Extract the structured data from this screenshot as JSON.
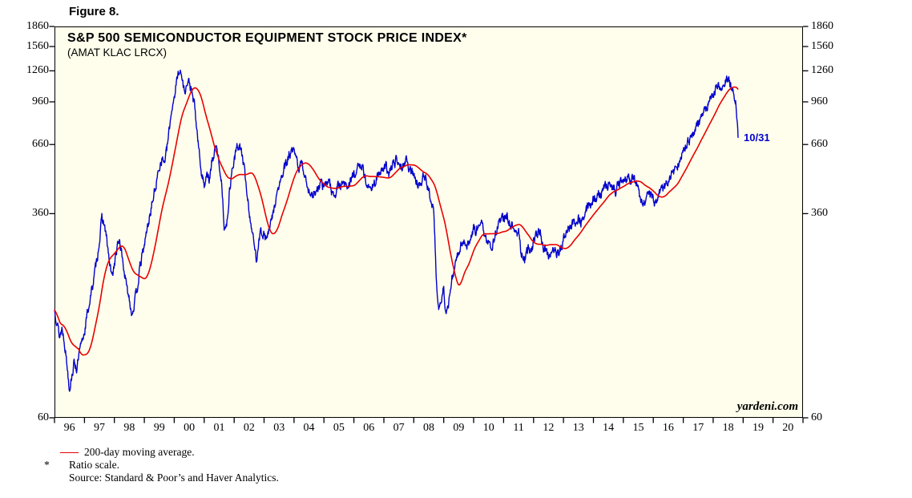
{
  "figure": {
    "label": "Figure 8."
  },
  "chart_data": {
    "type": "line",
    "title": "S&P 500 SEMICONDUCTOR EQUIPMENT STOCK PRICE INDEX*",
    "subtitle": "(AMAT KLAC LRCX)",
    "y_scale": "log",
    "ylim": [
      60,
      1860
    ],
    "y_ticks": [
      1860,
      1560,
      1260,
      960,
      660,
      360,
      60
    ],
    "x_range": [
      1996,
      2021
    ],
    "x_year_labels": [
      "96",
      "97",
      "98",
      "99",
      "00",
      "01",
      "02",
      "03",
      "04",
      "05",
      "06",
      "07",
      "08",
      "09",
      "10",
      "11",
      "12",
      "13",
      "14",
      "15",
      "16",
      "17",
      "18",
      "19",
      "20"
    ],
    "grid": "off",
    "legend_position": "below-left",
    "plot_background": "#fffeec",
    "watermark": "yardeni.com",
    "annotations": [
      {
        "text": "10/31",
        "x": 2019.02,
        "y": 700,
        "color": "#0000cd"
      }
    ],
    "legend": [
      {
        "label": "200-day moving average.",
        "color": "#e80000"
      }
    ],
    "style": {
      "noise_amplitude": 0.035
    },
    "series": [
      {
        "name": "S&P 500 Semiconductor Equipment stock price index (daily)",
        "color": "#0000cd",
        "points": [
          [
            1996.0,
            155
          ],
          [
            1996.083,
            142
          ],
          [
            1996.167,
            122
          ],
          [
            1996.25,
            132
          ],
          [
            1996.333,
            118
          ],
          [
            1996.417,
            96
          ],
          [
            1996.5,
            78
          ],
          [
            1996.583,
            88
          ],
          [
            1996.667,
            98
          ],
          [
            1996.75,
            92
          ],
          [
            1996.833,
            106
          ],
          [
            1996.917,
            116
          ],
          [
            1997.0,
            128
          ],
          [
            1997.083,
            146
          ],
          [
            1997.167,
            165
          ],
          [
            1997.25,
            185
          ],
          [
            1997.333,
            210
          ],
          [
            1997.417,
            240
          ],
          [
            1997.5,
            285
          ],
          [
            1997.583,
            345
          ],
          [
            1997.667,
            325
          ],
          [
            1997.75,
            282
          ],
          [
            1997.833,
            235
          ],
          [
            1997.917,
            205
          ],
          [
            1998.0,
            232
          ],
          [
            1998.083,
            262
          ],
          [
            1998.167,
            288
          ],
          [
            1998.25,
            252
          ],
          [
            1998.333,
            215
          ],
          [
            1998.417,
            186
          ],
          [
            1998.5,
            172
          ],
          [
            1998.583,
            150
          ],
          [
            1998.667,
            163
          ],
          [
            1998.75,
            182
          ],
          [
            1998.833,
            215
          ],
          [
            1998.917,
            245
          ],
          [
            1999.0,
            272
          ],
          [
            1999.083,
            310
          ],
          [
            1999.167,
            345
          ],
          [
            1999.25,
            390
          ],
          [
            1999.333,
            430
          ],
          [
            1999.417,
            480
          ],
          [
            1999.5,
            545
          ],
          [
            1999.583,
            585
          ],
          [
            1999.667,
            565
          ],
          [
            1999.75,
            625
          ],
          [
            1999.833,
            750
          ],
          [
            1999.917,
            905
          ],
          [
            2000.0,
            1010
          ],
          [
            2000.083,
            1150
          ],
          [
            2000.167,
            1290
          ],
          [
            2000.25,
            1190
          ],
          [
            2000.333,
            1060
          ],
          [
            2000.417,
            1110
          ],
          [
            2000.5,
            1140
          ],
          [
            2000.583,
            1040
          ],
          [
            2000.667,
            940
          ],
          [
            2000.75,
            760
          ],
          [
            2000.833,
            610
          ],
          [
            2000.917,
            505
          ],
          [
            2001.0,
            465
          ],
          [
            2001.083,
            520
          ],
          [
            2001.167,
            475
          ],
          [
            2001.25,
            555
          ],
          [
            2001.333,
            615
          ],
          [
            2001.417,
            640
          ],
          [
            2001.5,
            560
          ],
          [
            2001.583,
            470
          ],
          [
            2001.667,
            330
          ],
          [
            2001.75,
            315
          ],
          [
            2001.833,
            425
          ],
          [
            2001.917,
            520
          ],
          [
            2002.0,
            575
          ],
          [
            2002.083,
            635
          ],
          [
            2002.167,
            660
          ],
          [
            2002.25,
            615
          ],
          [
            2002.333,
            535
          ],
          [
            2002.417,
            450
          ],
          [
            2002.5,
            365
          ],
          [
            2002.583,
            320
          ],
          [
            2002.667,
            272
          ],
          [
            2002.75,
            240
          ],
          [
            2002.833,
            298
          ],
          [
            2002.917,
            308
          ],
          [
            2003.0,
            298
          ],
          [
            2003.083,
            288
          ],
          [
            2003.167,
            308
          ],
          [
            2003.25,
            338
          ],
          [
            2003.333,
            378
          ],
          [
            2003.417,
            418
          ],
          [
            2003.5,
            458
          ],
          [
            2003.583,
            492
          ],
          [
            2003.667,
            528
          ],
          [
            2003.75,
            558
          ],
          [
            2003.833,
            598
          ],
          [
            2003.917,
            618
          ],
          [
            2004.0,
            612
          ],
          [
            2004.083,
            578
          ],
          [
            2004.167,
            538
          ],
          [
            2004.25,
            558
          ],
          [
            2004.333,
            518
          ],
          [
            2004.417,
            478
          ],
          [
            2004.5,
            442
          ],
          [
            2004.583,
            418
          ],
          [
            2004.667,
            438
          ],
          [
            2004.75,
            428
          ],
          [
            2004.833,
            458
          ],
          [
            2004.917,
            468
          ],
          [
            2005.0,
            452
          ],
          [
            2005.083,
            468
          ],
          [
            2005.167,
            488
          ],
          [
            2005.25,
            442
          ],
          [
            2005.333,
            422
          ],
          [
            2005.417,
            438
          ],
          [
            2005.5,
            468
          ],
          [
            2005.583,
            458
          ],
          [
            2005.667,
            478
          ],
          [
            2005.75,
            452
          ],
          [
            2005.833,
            468
          ],
          [
            2005.917,
            488
          ],
          [
            2006.0,
            508
          ],
          [
            2006.083,
            528
          ],
          [
            2006.167,
            538
          ],
          [
            2006.25,
            558
          ],
          [
            2006.333,
            518
          ],
          [
            2006.417,
            472
          ],
          [
            2006.5,
            442
          ],
          [
            2006.583,
            458
          ],
          [
            2006.667,
            468
          ],
          [
            2006.75,
            488
          ],
          [
            2006.833,
            508
          ],
          [
            2006.917,
            518
          ],
          [
            2007.0,
            528
          ],
          [
            2007.083,
            538
          ],
          [
            2007.167,
            508
          ],
          [
            2007.25,
            538
          ],
          [
            2007.333,
            558
          ],
          [
            2007.417,
            578
          ],
          [
            2007.5,
            588
          ],
          [
            2007.583,
            542
          ],
          [
            2007.667,
            558
          ],
          [
            2007.75,
            578
          ],
          [
            2007.833,
            542
          ],
          [
            2007.917,
            518
          ],
          [
            2008.0,
            498
          ],
          [
            2008.083,
            478
          ],
          [
            2008.167,
            458
          ],
          [
            2008.25,
            488
          ],
          [
            2008.333,
            508
          ],
          [
            2008.417,
            478
          ],
          [
            2008.5,
            432
          ],
          [
            2008.583,
            418
          ],
          [
            2008.667,
            352
          ],
          [
            2008.75,
            205
          ],
          [
            2008.833,
            152
          ],
          [
            2008.917,
            170
          ],
          [
            2009.0,
            185
          ],
          [
            2009.083,
            148
          ],
          [
            2009.167,
            160
          ],
          [
            2009.25,
            198
          ],
          [
            2009.333,
            218
          ],
          [
            2009.417,
            238
          ],
          [
            2009.5,
            258
          ],
          [
            2009.583,
            278
          ],
          [
            2009.667,
            288
          ],
          [
            2009.75,
            268
          ],
          [
            2009.833,
            278
          ],
          [
            2009.917,
            298
          ],
          [
            2010.0,
            318
          ],
          [
            2010.083,
            308
          ],
          [
            2010.167,
            328
          ],
          [
            2010.25,
            348
          ],
          [
            2010.333,
            298
          ],
          [
            2010.417,
            278
          ],
          [
            2010.5,
            288
          ],
          [
            2010.583,
            268
          ],
          [
            2010.667,
            288
          ],
          [
            2010.75,
            308
          ],
          [
            2010.833,
            328
          ],
          [
            2010.917,
            338
          ],
          [
            2011.0,
            348
          ],
          [
            2011.083,
            358
          ],
          [
            2011.167,
            338
          ],
          [
            2011.25,
            328
          ],
          [
            2011.333,
            318
          ],
          [
            2011.417,
            298
          ],
          [
            2011.5,
            308
          ],
          [
            2011.583,
            258
          ],
          [
            2011.667,
            238
          ],
          [
            2011.75,
            248
          ],
          [
            2011.833,
            268
          ],
          [
            2011.917,
            258
          ],
          [
            2012.0,
            278
          ],
          [
            2012.083,
            298
          ],
          [
            2012.167,
            308
          ],
          [
            2012.25,
            298
          ],
          [
            2012.333,
            268
          ],
          [
            2012.417,
            258
          ],
          [
            2012.5,
            248
          ],
          [
            2012.583,
            258
          ],
          [
            2012.667,
            268
          ],
          [
            2012.75,
            258
          ],
          [
            2012.833,
            248
          ],
          [
            2012.917,
            268
          ],
          [
            2013.0,
            288
          ],
          [
            2013.083,
            298
          ],
          [
            2013.167,
            308
          ],
          [
            2013.25,
            318
          ],
          [
            2013.333,
            338
          ],
          [
            2013.417,
            328
          ],
          [
            2013.5,
            348
          ],
          [
            2013.583,
            338
          ],
          [
            2013.667,
            358
          ],
          [
            2013.75,
            368
          ],
          [
            2013.833,
            388
          ],
          [
            2013.917,
            398
          ],
          [
            2014.0,
            408
          ],
          [
            2014.083,
            418
          ],
          [
            2014.167,
            438
          ],
          [
            2014.25,
            428
          ],
          [
            2014.333,
            448
          ],
          [
            2014.417,
            458
          ],
          [
            2014.5,
            468
          ],
          [
            2014.583,
            448
          ],
          [
            2014.667,
            458
          ],
          [
            2014.75,
            438
          ],
          [
            2014.833,
            468
          ],
          [
            2014.917,
            478
          ],
          [
            2015.0,
            488
          ],
          [
            2015.083,
            498
          ],
          [
            2015.167,
            508
          ],
          [
            2015.25,
            488
          ],
          [
            2015.333,
            498
          ],
          [
            2015.417,
            468
          ],
          [
            2015.5,
            438
          ],
          [
            2015.583,
            398
          ],
          [
            2015.667,
            378
          ],
          [
            2015.75,
            418
          ],
          [
            2015.833,
            438
          ],
          [
            2015.917,
            428
          ],
          [
            2016.0,
            418
          ],
          [
            2016.083,
            388
          ],
          [
            2016.167,
            428
          ],
          [
            2016.25,
            438
          ],
          [
            2016.333,
            448
          ],
          [
            2016.417,
            458
          ],
          [
            2016.5,
            488
          ],
          [
            2016.583,
            508
          ],
          [
            2016.667,
            528
          ],
          [
            2016.75,
            518
          ],
          [
            2016.833,
            558
          ],
          [
            2016.917,
            588
          ],
          [
            2017.0,
            618
          ],
          [
            2017.083,
            648
          ],
          [
            2017.167,
            678
          ],
          [
            2017.25,
            698
          ],
          [
            2017.333,
            728
          ],
          [
            2017.417,
            758
          ],
          [
            2017.5,
            788
          ],
          [
            2017.583,
            818
          ],
          [
            2017.667,
            848
          ],
          [
            2017.75,
            898
          ],
          [
            2017.833,
            948
          ],
          [
            2017.917,
            978
          ],
          [
            2018.0,
            1020
          ],
          [
            2018.083,
            1080
          ],
          [
            2018.167,
            1150
          ],
          [
            2018.25,
            1100
          ],
          [
            2018.333,
            1130
          ],
          [
            2018.417,
            1180
          ],
          [
            2018.5,
            1150
          ],
          [
            2018.583,
            1100
          ],
          [
            2018.667,
            1020
          ],
          [
            2018.75,
            950
          ],
          [
            2018.833,
            700
          ]
        ]
      },
      {
        "name": "200-day moving average",
        "color": "#e80000",
        "derived_from": "series 0 trailing mean",
        "window_years": 0.8
      }
    ]
  },
  "footnotes": [
    {
      "marker": "*",
      "text": "Ratio scale."
    },
    {
      "marker": "",
      "text": "Source: Standard & Poor’s and Haver Analytics."
    }
  ]
}
